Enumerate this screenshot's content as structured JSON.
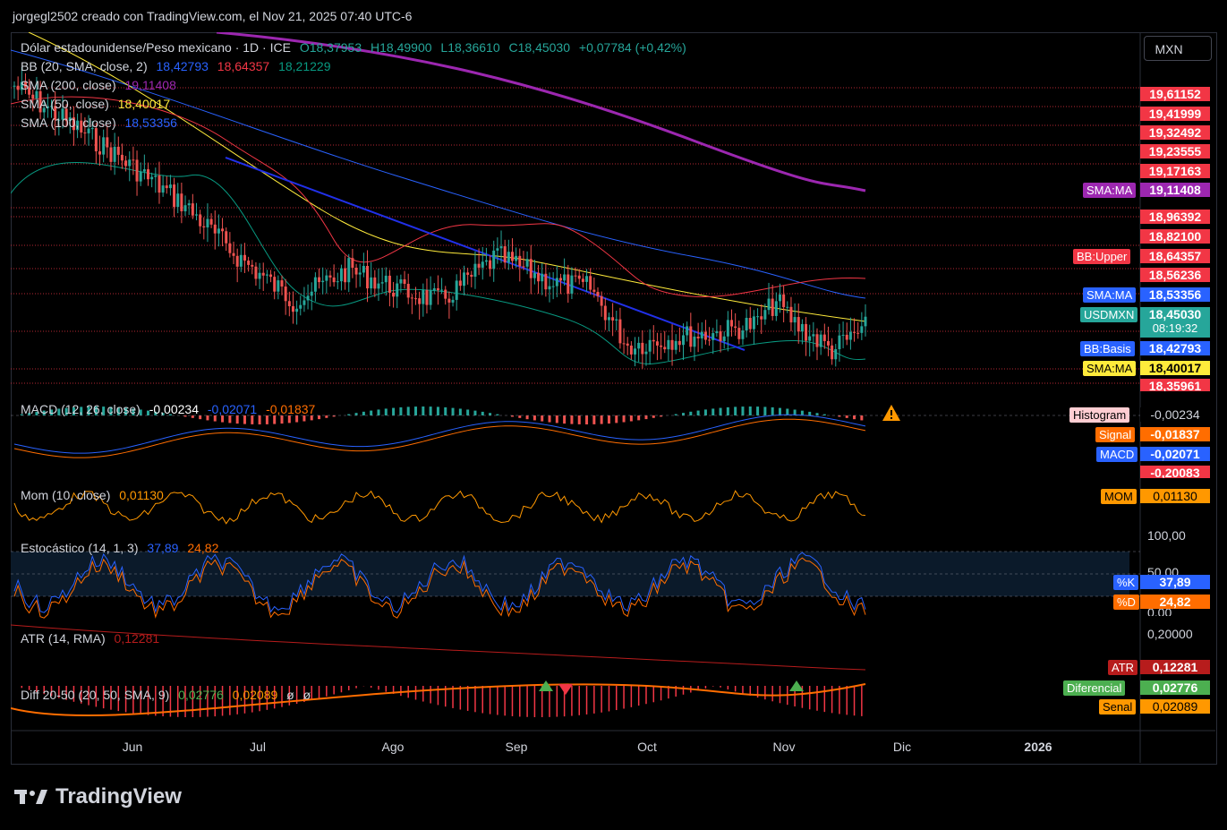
{
  "header": {
    "credit": "jorgegl2502 creado con TradingView.com, el Nov 21, 2025 07:40 UTC-6"
  },
  "currency_button": "MXN",
  "logo_text": "TradingView",
  "colors": {
    "up": "#26a69a",
    "down": "#ef5350",
    "sma200": "#9c27b0",
    "sma50": "#ffeb3b",
    "sma100": "#2962ff",
    "bb_upper": "#f23645",
    "bb_lower": "#089981",
    "trend": "#2130e8",
    "macd": "#2962ff",
    "signal": "#ff6d00",
    "mom": "#ff9800",
    "k": "#2962ff",
    "d": "#ff6d00",
    "atr": "#b71c1c"
  },
  "legend": {
    "title": "Dólar estadounidense/Peso mexicano · 1D · ICE",
    "ohlc": {
      "o": "O18,37953",
      "h": "H18,49900",
      "l": "L18,36610",
      "c": "C18,45030",
      "chg": "+0,07784 (+0,42%)"
    },
    "bb": {
      "name": "BB (20, SMA, close, 2)",
      "v1": "18,42793",
      "v2": "18,64357",
      "v3": "18,21229"
    },
    "sma200": {
      "name": "SMA (200, close)",
      "v": "19,11408"
    },
    "sma50": {
      "name": "SMA (50, close)",
      "v": "18,40017"
    },
    "sma100": {
      "name": "SMA (100, close)",
      "v": "18,53356"
    },
    "macd": {
      "name": "MACD (12, 26, close)",
      "v1": "-0,00234",
      "v2": "-0,02071",
      "v3": "-0,01837"
    },
    "mom": {
      "name": "Mom (10, close)",
      "v": "0,01130"
    },
    "stoch": {
      "name": "Estocástico (14, 1, 3)",
      "v1": "37,89",
      "v2": "24,82"
    },
    "atr": {
      "name": "ATR (14, RMA)",
      "v": "0,12281"
    },
    "diff": {
      "name": "Diff 20-50 (20, 50, SMA, 9)",
      "v1": "0,02776",
      "v2": "0,02089",
      "v3": "ø",
      "v4": "ø"
    }
  },
  "price_axis": {
    "red_levels": [
      "19,61152",
      "19,41999",
      "19,32492",
      "19,23555",
      "19,17163",
      "18,96392",
      "18,82100",
      "18,56236",
      "18,35961"
    ],
    "tags": [
      {
        "text": "SMA:MA",
        "value": "19,11408"
      },
      {
        "text": "BB:Upper",
        "value": "18,64357"
      },
      {
        "text": "SMA:MA",
        "value": "18,53356"
      },
      {
        "text": "USDMXN",
        "value": "18,45030",
        "sub": "08:19:32"
      },
      {
        "text": "BB:Basis",
        "value": "18,42793"
      },
      {
        "text": "SMA:MA",
        "value": "18,40017"
      }
    ]
  },
  "macd_axis": {
    "tags": [
      {
        "text": "Histogram",
        "value": "-0,00234"
      },
      {
        "text": "Signal",
        "value": "-0,01837"
      },
      {
        "text": "MACD",
        "value": "-0,02071"
      }
    ],
    "low": "-0,20083"
  },
  "mom_axis": {
    "tag": {
      "text": "MOM",
      "value": "0,01130"
    }
  },
  "stoch_axis": {
    "ticks": [
      "100,00",
      "50,00",
      "0,00"
    ],
    "tags": [
      {
        "text": "%K",
        "value": "37,89"
      },
      {
        "text": "%D",
        "value": "24,82"
      }
    ]
  },
  "atr_axis": {
    "tick": "0,20000",
    "tag": {
      "text": "ATR",
      "value": "0,12281"
    }
  },
  "diff_axis": {
    "tags": [
      {
        "text": "Diferencial",
        "value": "0,02776"
      },
      {
        "text": "Senal",
        "value": "0,02089"
      }
    ]
  },
  "chart_data": {
    "type": "candlestick",
    "x_ticks": [
      "Jun",
      "Jul",
      "Ago",
      "Sep",
      "Oct",
      "Nov",
      "Dic",
      "2026"
    ],
    "last": {
      "open": 18.37953,
      "high": 18.499,
      "low": 18.3661,
      "close": 18.4503
    },
    "ylim": [
      18.2,
      19.75
    ]
  }
}
